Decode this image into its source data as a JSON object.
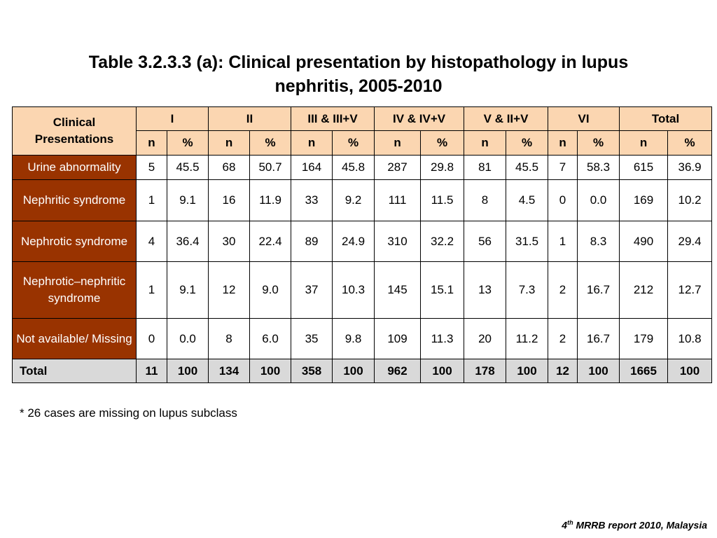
{
  "title_line1": "Table 3.2.3.3 (a): Clinical presentation by histopathology in lupus",
  "title_line2": "nephritis, 2005-2010",
  "table": {
    "corner_label": "Clinical Presentations",
    "groups": [
      "I",
      "II",
      "III & III+V",
      "IV & IV+V",
      "V & II+V",
      "VI",
      "Total"
    ],
    "sub_n": "n",
    "sub_pct": "%",
    "rows": [
      {
        "label": "Urine abnormality",
        "cells": [
          "5",
          "45.5",
          "68",
          "50.7",
          "164",
          "45.8",
          "287",
          "29.8",
          "81",
          "45.5",
          "7",
          "58.3",
          "615",
          "36.9"
        ]
      },
      {
        "label": "Nephritic syndrome",
        "cells": [
          "1",
          "9.1",
          "16",
          "11.9",
          "33",
          "9.2",
          "111",
          "11.5",
          "8",
          "4.5",
          "0",
          "0.0",
          "169",
          "10.2"
        ]
      },
      {
        "label": "Nephrotic syndrome",
        "cells": [
          "4",
          "36.4",
          "30",
          "22.4",
          "89",
          "24.9",
          "310",
          "32.2",
          "56",
          "31.5",
          "1",
          "8.3",
          "490",
          "29.4"
        ]
      },
      {
        "label": "Nephrotic–nephritic syndrome",
        "cells": [
          "1",
          "9.1",
          "12",
          "9.0",
          "37",
          "10.3",
          "145",
          "15.1",
          "13",
          "7.3",
          "2",
          "16.7",
          "212",
          "12.7"
        ]
      },
      {
        "label": "Not available/ Missing",
        "cells": [
          "0",
          "0.0",
          "8",
          "6.0",
          "35",
          "9.8",
          "109",
          "11.3",
          "20",
          "11.2",
          "2",
          "16.7",
          "179",
          "10.8"
        ]
      }
    ],
    "total_row": {
      "label": "Total",
      "cells": [
        "11",
        "100",
        "134",
        "100",
        "358",
        "100",
        "962",
        "100",
        "178",
        "100",
        "12",
        "100",
        "1665",
        "100"
      ]
    }
  },
  "footnote": "* 26 cases are missing on lupus subclass",
  "source": {
    "num": "4",
    "sup": "th",
    "rest": " MRRB report 2010, Malaysia"
  }
}
